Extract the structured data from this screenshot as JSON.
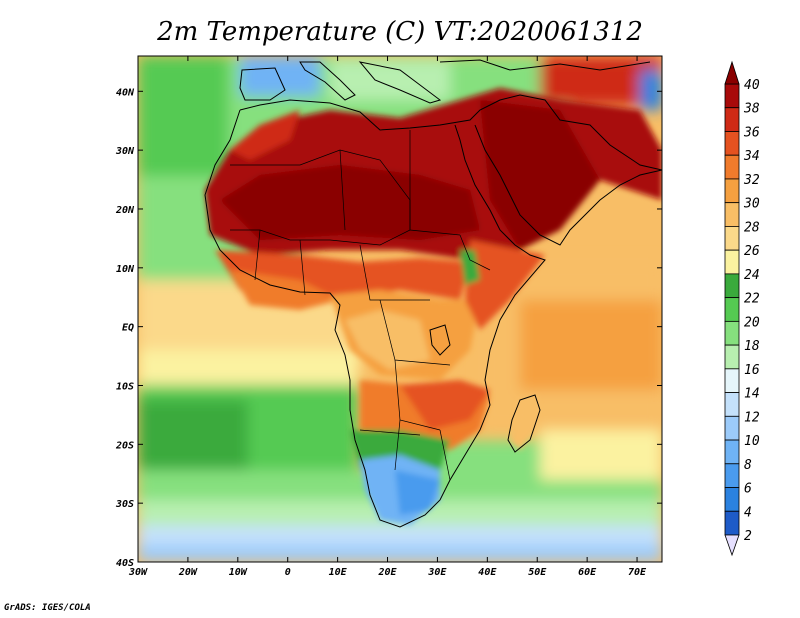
{
  "title": "2m Temperature (C)  VT:2020061312",
  "credit": "GrADS: IGES/COLA",
  "map": {
    "lon_range": [
      -30,
      75
    ],
    "lat_range": [
      -40,
      46
    ],
    "lon_ticks": [
      {
        "value": -30,
        "label": "30W"
      },
      {
        "value": -20,
        "label": "20W"
      },
      {
        "value": -10,
        "label": "10W"
      },
      {
        "value": 0,
        "label": "0"
      },
      {
        "value": 10,
        "label": "10E"
      },
      {
        "value": 20,
        "label": "20E"
      },
      {
        "value": 30,
        "label": "30E"
      },
      {
        "value": 40,
        "label": "40E"
      },
      {
        "value": 50,
        "label": "50E"
      },
      {
        "value": 60,
        "label": "60E"
      },
      {
        "value": 70,
        "label": "70E"
      }
    ],
    "lat_ticks": [
      {
        "value": 40,
        "label": "40N"
      },
      {
        "value": 30,
        "label": "30N"
      },
      {
        "value": 20,
        "label": "20N"
      },
      {
        "value": 10,
        "label": "10N"
      },
      {
        "value": 0,
        "label": "EQ"
      },
      {
        "value": -10,
        "label": "10S"
      },
      {
        "value": -20,
        "label": "20S"
      },
      {
        "value": -30,
        "label": "30S"
      },
      {
        "value": -40,
        "label": "40S"
      }
    ]
  },
  "colorbar": {
    "levels": [
      2,
      4,
      6,
      8,
      10,
      12,
      14,
      16,
      18,
      20,
      22,
      24,
      26,
      28,
      30,
      32,
      34,
      36,
      38,
      40
    ],
    "colors": [
      "#1f1f8f",
      "#1e5bc8",
      "#2b82e0",
      "#4a9bee",
      "#6fb3f5",
      "#9ccbfa",
      "#c4e1fb",
      "#e6f6fb",
      "#b8efb0",
      "#86e07e",
      "#55ca52",
      "#3aaa3c",
      "#fbf2a0",
      "#fbd98a",
      "#f8be66",
      "#f5a040",
      "#f07b2c",
      "#e55220",
      "#cf2a16",
      "#a80a0a",
      "#8a0000"
    ],
    "min_color": "#e6e0ff",
    "max_color": "#8a0000"
  }
}
